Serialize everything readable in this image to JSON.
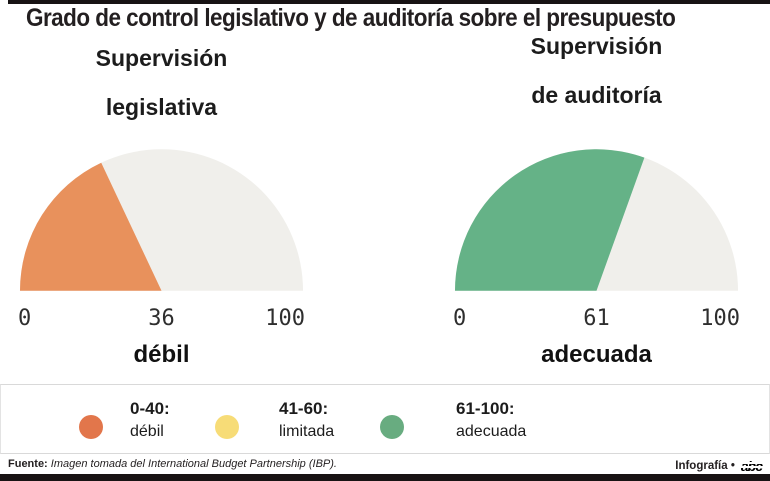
{
  "title": "Grado de control legislativo y de auditoría sobre el presupuesto",
  "gauges": [
    {
      "subtitle_line1": "Supervisión",
      "subtitle_line2": "legislativa",
      "value": 36,
      "min_label": "0",
      "value_label": "36",
      "max_label": "100",
      "verdict": "débil",
      "fill_color": "#E8915C",
      "track_color": "#F0EFEB"
    },
    {
      "subtitle_line1": "Supervisión",
      "subtitle_line2": "de auditoría",
      "value": 61,
      "min_label": "0",
      "value_label": "61",
      "max_label": "100",
      "verdict": "adecuada",
      "fill_color": "#65B287",
      "track_color": "#F0EFEB"
    }
  ],
  "legend": {
    "items": [
      {
        "range": "0-40:",
        "label": "débil",
        "color": "#E2764B"
      },
      {
        "range": "41-60:",
        "label": "limitada",
        "color": "#F7DC77"
      },
      {
        "range": "61-100:",
        "label": "adecuada",
        "color": "#68AC80"
      }
    ]
  },
  "footer": {
    "source_label": "Fuente:",
    "source_text": "Imagen tomada del International Budget Partnership (IBP).",
    "credit_text": "Infografía •",
    "brand": "abc"
  },
  "chart_data": [
    {
      "type": "gauge",
      "title": "Supervisión legislativa",
      "value": 36,
      "axis_range": [
        0,
        100
      ],
      "tick_labels": [
        "0",
        "36",
        "100"
      ],
      "verdict": "débil",
      "fill_color": "#E8915C",
      "track_color": "#F0EFEB",
      "thresholds": [
        {
          "range": "0-40",
          "label": "débil",
          "color": "#E2764B"
        },
        {
          "range": "41-60",
          "label": "limitada",
          "color": "#F7DC77"
        },
        {
          "range": "61-100",
          "label": "adecuada",
          "color": "#68AC80"
        }
      ]
    },
    {
      "type": "gauge",
      "title": "Supervisión de auditoría",
      "value": 61,
      "axis_range": [
        0,
        100
      ],
      "tick_labels": [
        "0",
        "61",
        "100"
      ],
      "verdict": "adecuada",
      "fill_color": "#65B287",
      "track_color": "#F0EFEB",
      "thresholds": [
        {
          "range": "0-40",
          "label": "débil",
          "color": "#E2764B"
        },
        {
          "range": "41-60",
          "label": "limitada",
          "color": "#F7DC77"
        },
        {
          "range": "61-100",
          "label": "adecuada",
          "color": "#68AC80"
        }
      ]
    }
  ]
}
